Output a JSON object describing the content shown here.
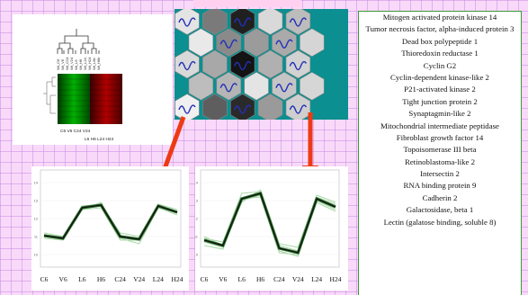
{
  "heatmap": {
    "labels_top": "C6 V6 C24 V24",
    "labels_bottom": "L6 H6 L24 H24"
  },
  "som": {
    "hex_colors": [
      [
        "#e4e4e4",
        "#7a7a7a",
        "#202020",
        "#d9d9d9",
        "#bcbcbc"
      ],
      [
        "#e9e9e9",
        "#8a8a8a",
        "#9b9b9b",
        "#aaaaaa",
        "#d5d5d5"
      ],
      [
        "#d9d9d9",
        "#a8a8a8",
        "#141414",
        "#b0b0b0",
        "#d2d2d2"
      ],
      [
        "#bdbdbd",
        "#b5b5b5",
        "#e4e4e4",
        "#c5c5c5",
        "#d6d6d6"
      ],
      [
        "#f0f0f0",
        "#5e5e5e",
        "#2a2a2a",
        "#9a9a9a",
        "#cfcfcf"
      ]
    ],
    "wave_color": "#2330b8"
  },
  "arrow_color": "#ee3a14",
  "genes": [
    "Mitogen activated protein kinase 14",
    "Tumor necrosis factor, alpha-induced protein 3",
    "Dead box polypeptide 1",
    "Thioredoxin reductase 1",
    "Cyclin G2",
    "Cyclin-dependent kinase-like 2",
    "P21-activated kinase 2",
    "Tight junction protein 2",
    "Synaptagmin-like 2",
    "Mitochondrial intermediate peptidase",
    "Fibroblast growth factor 14",
    "Topoisomerase III beta",
    "Retinoblastoma-like 2",
    "Intersectin 2",
    "RNA binding protein 9",
    "Cadherin 2",
    "Galactosidase, beta 1",
    "Lectin (galatose binding, soluble 8)"
  ],
  "chart_data": [
    {
      "type": "line",
      "categories": [
        "C6",
        "V6",
        "L6",
        "H6",
        "C24",
        "V24",
        "L24",
        "H24"
      ],
      "yticks": [
        "10",
        "11",
        "12",
        "13",
        "14"
      ],
      "ylim": [
        9.5,
        14.5
      ],
      "series": [
        {
          "values": [
            11.0,
            10.9,
            12.6,
            12.7,
            11.0,
            10.9,
            12.7,
            12.3
          ]
        },
        {
          "values": [
            11.2,
            11.0,
            12.7,
            12.8,
            11.2,
            11.0,
            12.8,
            12.5
          ]
        },
        {
          "values": [
            10.9,
            10.8,
            12.5,
            12.6,
            10.8,
            10.8,
            12.6,
            12.2
          ]
        },
        {
          "values": [
            11.1,
            10.9,
            12.5,
            12.9,
            10.9,
            10.6,
            12.6,
            12.4
          ]
        }
      ],
      "mean": [
        11.05,
        10.9,
        12.6,
        12.75,
        11.0,
        10.85,
        12.7,
        12.35
      ]
    },
    {
      "type": "line",
      "categories": [
        "C6",
        "V6",
        "L6",
        "H6",
        "C24",
        "V24",
        "L24",
        "H24"
      ],
      "yticks": [
        "10",
        "11",
        "12",
        "13",
        "14"
      ],
      "ylim": [
        9.5,
        14.5
      ],
      "series": [
        {
          "values": [
            10.7,
            10.4,
            13.0,
            13.3,
            10.2,
            9.9,
            13.0,
            12.5
          ]
        },
        {
          "values": [
            10.9,
            10.7,
            13.4,
            13.5,
            10.5,
            10.2,
            13.2,
            12.8
          ]
        },
        {
          "values": [
            10.5,
            10.3,
            13.1,
            13.2,
            10.1,
            10.0,
            12.9,
            12.4
          ]
        },
        {
          "values": [
            11.0,
            10.5,
            12.9,
            13.6,
            10.6,
            10.4,
            13.3,
            12.9
          ]
        }
      ],
      "mean": [
        10.8,
        10.5,
        13.1,
        13.4,
        10.35,
        10.1,
        13.1,
        12.65
      ]
    }
  ]
}
